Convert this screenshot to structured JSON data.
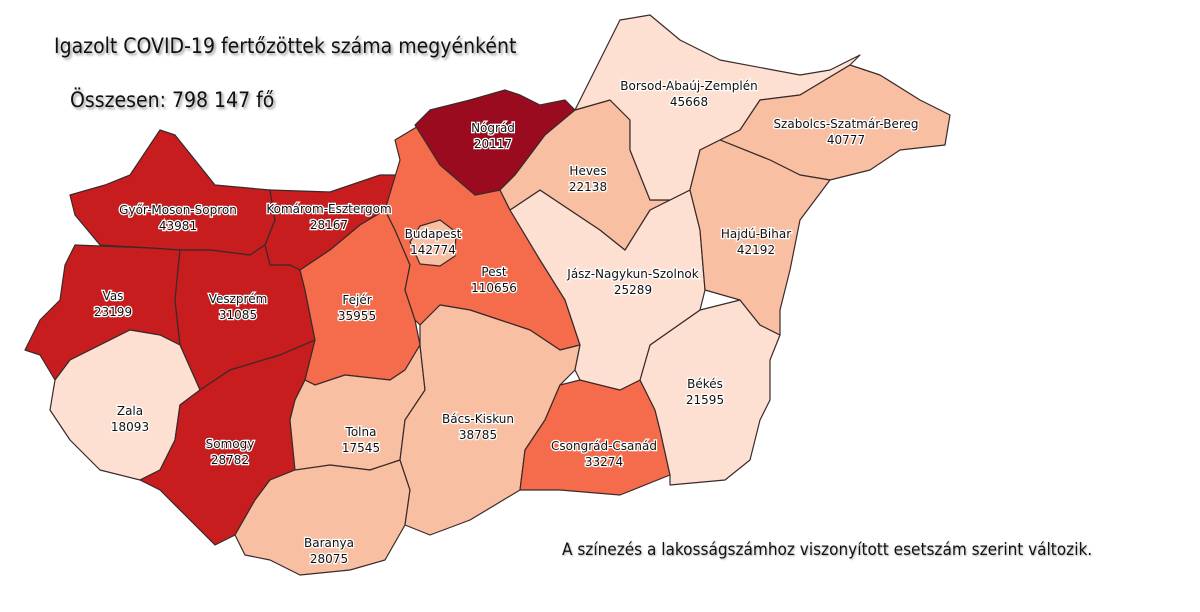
{
  "title": "Igazolt COVID-19 fertőzöttek száma megyénként",
  "total": "Összesen: 798 147 fő",
  "note": "A színezés a lakosságszámhoz viszonyított esetszám szerint változik.",
  "counties": [
    {
      "name": "Győr-Moson-Sopron",
      "value": "43981",
      "color": "#c71d1f"
    },
    {
      "name": "Komárom-Esztergom",
      "value": "28167",
      "color": "#c71d1f"
    },
    {
      "name": "Vas",
      "value": "23199",
      "color": "#c71d1f"
    },
    {
      "name": "Veszprém",
      "value": "31085",
      "color": "#c71d1f"
    },
    {
      "name": "Zala",
      "value": "18093",
      "color": "#fde0d2"
    },
    {
      "name": "Somogy",
      "value": "28782",
      "color": "#c71d1f"
    },
    {
      "name": "Fejér",
      "value": "35955",
      "color": "#f46c4b"
    },
    {
      "name": "Pest",
      "value": "110656",
      "color": "#f46c4b"
    },
    {
      "name": "Budapest",
      "value": "142774",
      "color": "#f9bfa3"
    },
    {
      "name": "Nógrád",
      "value": "20117",
      "color": "#9b0b20"
    },
    {
      "name": "Tolna",
      "value": "17545",
      "color": "#f9bfa3"
    },
    {
      "name": "Baranya",
      "value": "28075",
      "color": "#f9bfa3"
    },
    {
      "name": "Bács-Kiskun",
      "value": "38785",
      "color": "#f9bfa3"
    },
    {
      "name": "Csongrád-Csanád",
      "value": "33274",
      "color": "#f46c4b"
    },
    {
      "name": "Békés",
      "value": "21595",
      "color": "#fde0d2"
    },
    {
      "name": "Jász-Nagykun-Szolnok",
      "value": "25289",
      "color": "#fde0d2"
    },
    {
      "name": "Heves",
      "value": "22138",
      "color": "#f9bfa3"
    },
    {
      "name": "Borsod-Abaúj-Zemplén",
      "value": "45668",
      "color": "#fde0d2"
    },
    {
      "name": "Szabolcs-Szatmár-Bereg",
      "value": "40777",
      "color": "#f9bfa3"
    },
    {
      "name": "Hajdú-Bihar",
      "value": "42192",
      "color": "#f9bfa3"
    }
  ]
}
